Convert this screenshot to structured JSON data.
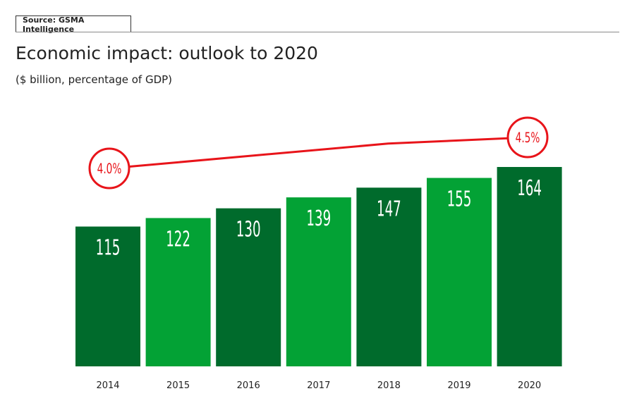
{
  "source": "Source: GSMA Intelligence",
  "title": "Economic impact: outlook to 2020",
  "subtitle": "($ billion, percentage of GDP)",
  "colors": {
    "bar_dark": "#006b2c",
    "bar_light": "#03a235",
    "line": "#e8141a",
    "bar_label": "#ffffff"
  },
  "chart_data": {
    "type": "bar",
    "title": "Economic impact: outlook to 2020",
    "subtitle": "($ billion, percentage of GDP)",
    "categories": [
      "2014",
      "2015",
      "2016",
      "2017",
      "2018",
      "2019",
      "2020"
    ],
    "series": [
      {
        "values": [
          115,
          122,
          130,
          139,
          147,
          155,
          164
        ],
        "colors": [
          "dark",
          "light",
          "dark",
          "light",
          "dark",
          "light",
          "dark"
        ]
      }
    ],
    "line": {
      "type": "line",
      "unit": "percentage of GDP",
      "values": [
        4.0,
        4.1,
        4.2,
        4.3,
        4.4,
        4.45,
        4.5
      ],
      "labels": [
        {
          "index": 0,
          "text": "4.0%"
        },
        {
          "index": 6,
          "text": "4.5%"
        }
      ]
    },
    "ylim": [
      0,
      170
    ],
    "xlabel": "",
    "ylabel": "",
    "grid": false,
    "legend": "none"
  }
}
